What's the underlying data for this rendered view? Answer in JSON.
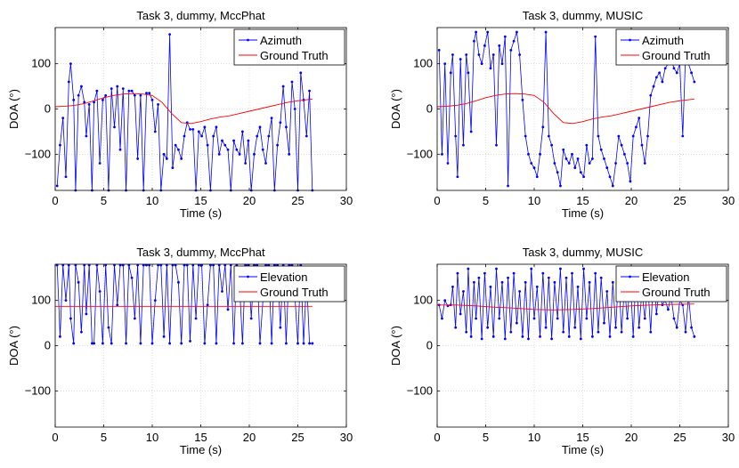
{
  "figure": {
    "kind": "2x2 subplot grid of DOA estimates vs time"
  },
  "chart_data": [
    {
      "type": "line",
      "title": "Task 3, dummy, MccPhat",
      "xlabel": "Time (s)",
      "ylabel": "DOA (°)",
      "xlim": [
        0,
        30
      ],
      "ylim": [
        -180,
        180
      ],
      "xticks": [
        0,
        5,
        10,
        15,
        20,
        25,
        30
      ],
      "xtick_labels": [
        "0",
        "5",
        "10",
        "15",
        "20",
        "25",
        "30"
      ],
      "yticks": [
        -100,
        0,
        100
      ],
      "ytick_labels": [
        "−100",
        "0",
        "100"
      ],
      "grid": true,
      "legend": {
        "placement": "top-right",
        "entries": [
          "Azimuth",
          "Ground Truth"
        ]
      },
      "series": [
        {
          "name": "Azimuth",
          "color": "#0000ff",
          "marker": "dot",
          "x": [
            0.2,
            0.5,
            0.8,
            1.1,
            1.4,
            1.6,
            1.9,
            2.1,
            2.4,
            2.7,
            3.0,
            3.2,
            3.5,
            3.8,
            4.0,
            4.3,
            4.6,
            4.9,
            5.2,
            5.5,
            5.8,
            6.1,
            6.4,
            6.7,
            7.0,
            7.3,
            7.6,
            7.9,
            8.2,
            8.5,
            8.8,
            9.1,
            9.4,
            9.7,
            10.0,
            10.3,
            10.6,
            10.9,
            11.2,
            11.5,
            11.8,
            12.1,
            12.4,
            12.7,
            13.0,
            13.3,
            13.6,
            13.9,
            14.2,
            14.5,
            14.8,
            15.1,
            15.4,
            15.7,
            16.0,
            16.3,
            16.6,
            16.9,
            17.2,
            17.5,
            17.8,
            18.1,
            18.4,
            18.7,
            19.0,
            19.3,
            19.6,
            19.9,
            20.2,
            20.5,
            20.8,
            21.1,
            21.4,
            21.7,
            22.0,
            22.3,
            22.6,
            22.9,
            23.2,
            23.5,
            23.8,
            24.1,
            24.4,
            24.7,
            25.0,
            25.3,
            25.6,
            25.9,
            26.2,
            26.5
          ],
          "y": [
            -170,
            -80,
            -20,
            -150,
            60,
            100,
            20,
            -180,
            30,
            50,
            15,
            -60,
            10,
            -180,
            15,
            40,
            -120,
            20,
            30,
            -180,
            45,
            -40,
            50,
            -90,
            45,
            -180,
            40,
            40,
            30,
            -110,
            30,
            -180,
            35,
            35,
            20,
            -50,
            10,
            -180,
            -100,
            -110,
            165,
            -130,
            -80,
            -90,
            -110,
            -60,
            -30,
            -45,
            -45,
            -180,
            -50,
            -60,
            -40,
            -80,
            -180,
            -60,
            -40,
            -100,
            -70,
            -80,
            -90,
            -180,
            -70,
            -90,
            -100,
            -50,
            -120,
            -70,
            -180,
            -100,
            -60,
            -40,
            -90,
            -120,
            -60,
            -20,
            -180,
            -80,
            -30,
            50,
            -40,
            -100,
            60,
            0,
            -180,
            80,
            20,
            -60,
            40,
            -180
          ],
          "marker_size": 1.4
        },
        {
          "name": "Ground Truth",
          "color": "#ff0000",
          "marker": "none",
          "x": [
            0,
            1,
            2,
            3,
            4,
            5,
            6,
            7,
            8,
            9,
            10,
            11,
            12,
            13,
            14,
            15,
            16,
            17,
            18,
            19,
            20,
            21,
            22,
            23,
            24,
            25,
            26.5
          ],
          "y": [
            5,
            6,
            8,
            12,
            18,
            25,
            30,
            33,
            34,
            33,
            30,
            15,
            -10,
            -30,
            -32,
            -28,
            -22,
            -18,
            -15,
            -10,
            -5,
            0,
            5,
            10,
            15,
            18,
            22
          ]
        }
      ]
    },
    {
      "type": "line",
      "title": "Task 3, dummy, MUSIC",
      "xlabel": "Time (s)",
      "ylabel": "DOA (°)",
      "xlim": [
        0,
        30
      ],
      "ylim": [
        -180,
        180
      ],
      "xticks": [
        0,
        5,
        10,
        15,
        20,
        25,
        30
      ],
      "xtick_labels": [
        "0",
        "5",
        "10",
        "15",
        "20",
        "25",
        "30"
      ],
      "yticks": [
        -100,
        0,
        100
      ],
      "ytick_labels": [
        "−100",
        "0",
        "100"
      ],
      "grid": true,
      "legend": {
        "placement": "top-right",
        "entries": [
          "Azimuth",
          "Ground Truth"
        ]
      },
      "series": [
        {
          "name": "Azimuth",
          "color": "#0000ff",
          "marker": "dot",
          "x": [
            0.2,
            0.5,
            0.8,
            1.1,
            1.4,
            1.6,
            1.9,
            2.1,
            2.4,
            2.7,
            3.0,
            3.2,
            3.5,
            3.8,
            4.0,
            4.3,
            4.6,
            4.9,
            5.2,
            5.5,
            5.8,
            6.1,
            6.4,
            6.7,
            7.0,
            7.3,
            7.6,
            7.9,
            8.2,
            8.5,
            8.8,
            9.1,
            9.4,
            9.7,
            10.0,
            10.3,
            10.6,
            10.9,
            11.2,
            11.5,
            11.8,
            12.1,
            12.4,
            12.7,
            13.0,
            13.3,
            13.6,
            13.9,
            14.2,
            14.5,
            14.8,
            15.1,
            15.4,
            15.7,
            16.0,
            16.3,
            16.6,
            16.9,
            17.2,
            17.5,
            17.8,
            18.1,
            18.4,
            18.7,
            19.0,
            19.3,
            19.6,
            19.9,
            20.2,
            20.5,
            20.8,
            21.1,
            21.4,
            21.7,
            22.0,
            22.3,
            22.6,
            22.9,
            23.2,
            23.5,
            23.8,
            24.1,
            24.4,
            24.7,
            25.0,
            25.3,
            25.6,
            25.9,
            26.2,
            26.5
          ],
          "y": [
            130,
            -100,
            100,
            -120,
            80,
            120,
            -60,
            -150,
            110,
            -80,
            120,
            80,
            -50,
            150,
            170,
            120,
            100,
            140,
            170,
            90,
            120,
            -80,
            140,
            100,
            160,
            -170,
            130,
            150,
            170,
            120,
            20,
            -60,
            -100,
            -120,
            -130,
            -150,
            -100,
            -40,
            170,
            -60,
            -80,
            -120,
            -140,
            -170,
            -90,
            -110,
            -120,
            -100,
            -130,
            -110,
            -140,
            -150,
            -80,
            -120,
            -110,
            160,
            -60,
            -90,
            -110,
            -130,
            -150,
            -170,
            -120,
            -60,
            -80,
            -100,
            -120,
            -160,
            -60,
            -40,
            -20,
            -80,
            -120,
            -60,
            30,
            50,
            70,
            80,
            60,
            90,
            100,
            110,
            90,
            80,
            100,
            -60,
            120,
            100,
            80,
            60
          ],
          "marker_size": 1.4
        },
        {
          "name": "Ground Truth",
          "color": "#ff0000",
          "marker": "none",
          "x": [
            0,
            1,
            2,
            3,
            4,
            5,
            6,
            7,
            8,
            9,
            10,
            11,
            12,
            13,
            14,
            15,
            16,
            17,
            18,
            19,
            20,
            21,
            22,
            23,
            24,
            25,
            26.5
          ],
          "y": [
            5,
            6,
            8,
            12,
            18,
            25,
            30,
            33,
            34,
            33,
            30,
            15,
            -10,
            -30,
            -32,
            -28,
            -22,
            -18,
            -15,
            -10,
            -5,
            0,
            5,
            10,
            15,
            18,
            22
          ]
        }
      ]
    },
    {
      "type": "line",
      "title": "Task 3, dummy, MccPhat",
      "xlabel": "Time (s)",
      "ylabel": "DOA (°)",
      "xlim": [
        0,
        30
      ],
      "ylim": [
        -180,
        180
      ],
      "xticks": [
        0,
        5,
        10,
        15,
        20,
        25,
        30
      ],
      "xtick_labels": [
        "0",
        "5",
        "10",
        "15",
        "20",
        "25",
        "30"
      ],
      "yticks": [
        -100,
        0,
        100
      ],
      "ytick_labels": [
        "−100",
        "0",
        "100"
      ],
      "grid": true,
      "legend": {
        "placement": "top-right",
        "entries": [
          "Elevation",
          "Ground Truth"
        ]
      },
      "series": [
        {
          "name": "Elevation",
          "color": "#0000ff",
          "marker": "dot",
          "x": [
            0.2,
            0.5,
            0.8,
            1.1,
            1.4,
            1.6,
            1.9,
            2.1,
            2.4,
            2.7,
            3.0,
            3.2,
            3.5,
            3.8,
            4.0,
            4.3,
            4.6,
            4.9,
            5.2,
            5.5,
            5.8,
            6.1,
            6.4,
            6.7,
            7.0,
            7.3,
            7.6,
            7.9,
            8.2,
            8.5,
            8.8,
            9.1,
            9.4,
            9.7,
            10.0,
            10.3,
            10.6,
            10.9,
            11.2,
            11.5,
            11.8,
            12.1,
            12.4,
            12.7,
            13.0,
            13.3,
            13.6,
            13.9,
            14.2,
            14.5,
            14.8,
            15.1,
            15.4,
            15.7,
            16.0,
            16.3,
            16.6,
            16.9,
            17.2,
            17.5,
            17.8,
            18.1,
            18.4,
            18.7,
            19.0,
            19.3,
            19.6,
            19.9,
            20.2,
            20.5,
            20.8,
            21.1,
            21.4,
            21.7,
            22.0,
            22.3,
            22.6,
            22.9,
            23.2,
            23.5,
            23.8,
            24.1,
            24.4,
            24.7,
            25.0,
            25.3,
            25.6,
            25.9,
            26.2,
            26.5
          ],
          "y": [
            178,
            20,
            178,
            100,
            178,
            60,
            5,
            178,
            140,
            30,
            178,
            70,
            178,
            5,
            5,
            178,
            120,
            5,
            178,
            40,
            5,
            178,
            90,
            178,
            178,
            5,
            178,
            150,
            60,
            178,
            5,
            178,
            178,
            178,
            5,
            100,
            178,
            178,
            20,
            178,
            5,
            178,
            178,
            140,
            5,
            178,
            178,
            10,
            178,
            60,
            178,
            178,
            5,
            90,
            178,
            178,
            5,
            178,
            120,
            178,
            80,
            178,
            5,
            178,
            130,
            5,
            178,
            178,
            60,
            178,
            178,
            5,
            100,
            178,
            178,
            5,
            178,
            178,
            40,
            178,
            5,
            178,
            178,
            110,
            5,
            178,
            5,
            150,
            5,
            5
          ],
          "marker_size": 1.4
        },
        {
          "name": "Ground Truth",
          "color": "#ff0000",
          "marker": "none",
          "x": [
            0,
            26.5
          ],
          "y": [
            87,
            87
          ]
        }
      ]
    },
    {
      "type": "line",
      "title": "Task 3, dummy, MUSIC",
      "xlabel": "Time (s)",
      "ylabel": "DOA (°)",
      "xlim": [
        0,
        30
      ],
      "ylim": [
        -180,
        180
      ],
      "xticks": [
        0,
        5,
        10,
        15,
        20,
        25,
        30
      ],
      "xtick_labels": [
        "0",
        "5",
        "10",
        "15",
        "20",
        "25",
        "30"
      ],
      "yticks": [
        -100,
        0,
        100
      ],
      "ytick_labels": [
        "−100",
        "0",
        "100"
      ],
      "grid": true,
      "legend": {
        "placement": "top-right",
        "entries": [
          "Elevation",
          "Ground Truth"
        ]
      },
      "series": [
        {
          "name": "Elevation",
          "color": "#0000ff",
          "marker": "dot",
          "x": [
            0.2,
            0.5,
            0.8,
            1.1,
            1.4,
            1.6,
            1.9,
            2.1,
            2.4,
            2.7,
            3.0,
            3.2,
            3.5,
            3.8,
            4.0,
            4.3,
            4.6,
            4.9,
            5.2,
            5.5,
            5.8,
            6.1,
            6.4,
            6.7,
            7.0,
            7.3,
            7.6,
            7.9,
            8.2,
            8.5,
            8.8,
            9.1,
            9.4,
            9.7,
            10.0,
            10.3,
            10.6,
            10.9,
            11.2,
            11.5,
            11.8,
            12.1,
            12.4,
            12.7,
            13.0,
            13.3,
            13.6,
            13.9,
            14.2,
            14.5,
            14.8,
            15.1,
            15.4,
            15.7,
            16.0,
            16.3,
            16.6,
            16.9,
            17.2,
            17.5,
            17.8,
            18.1,
            18.4,
            18.7,
            19.0,
            19.3,
            19.6,
            19.9,
            20.2,
            20.5,
            20.8,
            21.1,
            21.4,
            21.7,
            22.0,
            22.3,
            22.6,
            22.9,
            23.2,
            23.5,
            23.8,
            24.1,
            24.4,
            24.7,
            25.0,
            25.3,
            25.6,
            25.9,
            26.2,
            26.5
          ],
          "y": [
            90,
            60,
            100,
            88,
            90,
            130,
            40,
            160,
            70,
            120,
            30,
            170,
            20,
            140,
            60,
            150,
            15,
            160,
            40,
            130,
            20,
            170,
            60,
            140,
            15,
            150,
            30,
            160,
            50,
            120,
            20,
            140,
            15,
            170,
            60,
            130,
            20,
            160,
            40,
            150,
            15,
            140,
            60,
            170,
            30,
            150,
            20,
            160,
            40,
            130,
            15,
            170,
            60,
            140,
            20,
            160,
            30,
            150,
            50,
            120,
            20,
            140,
            40,
            160,
            30,
            130,
            60,
            150,
            20,
            170,
            40,
            120,
            60,
            140,
            30,
            160,
            70,
            130,
            90,
            100,
            80,
            110,
            60,
            40,
            100,
            90,
            30,
            110,
            40,
            20
          ],
          "marker_size": 1.4
        },
        {
          "name": "Ground Truth",
          "color": "#ff0000",
          "marker": "none",
          "x": [
            0,
            2,
            4,
            6,
            8,
            10,
            12,
            14,
            16,
            18,
            20,
            22,
            24,
            26.5
          ],
          "y": [
            90,
            90,
            88,
            85,
            83,
            80,
            79,
            80,
            82,
            85,
            88,
            90,
            91,
            92
          ]
        }
      ]
    }
  ]
}
